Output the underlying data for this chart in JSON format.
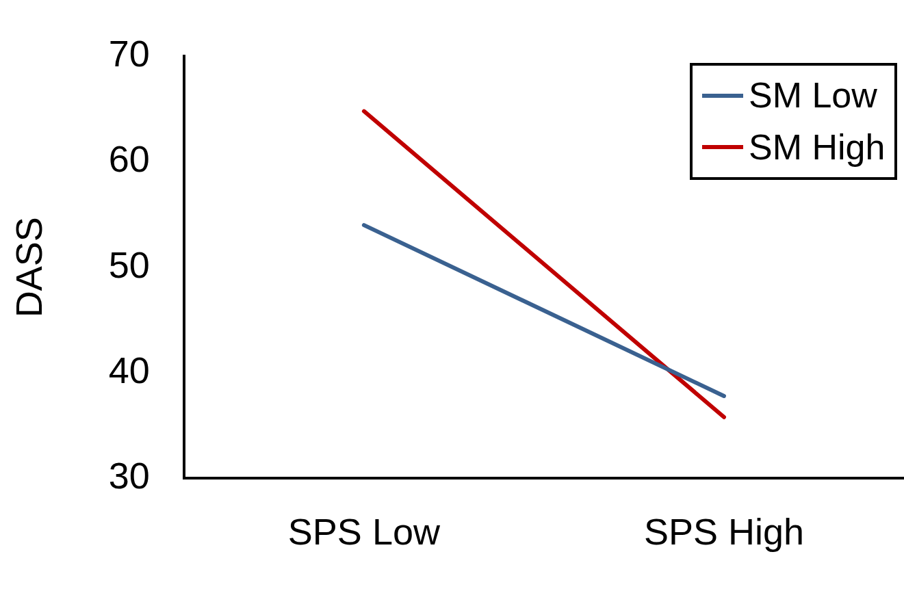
{
  "chart_data": {
    "type": "line",
    "ylabel": "DASS",
    "categories": [
      "SPS Low",
      "SPS High"
    ],
    "series": [
      {
        "name": "SM Low",
        "color": "#3a6190",
        "values": [
          54,
          37.8
        ]
      },
      {
        "name": "SM High",
        "color": "#c00000",
        "values": [
          64.8,
          35.8
        ]
      }
    ],
    "ylim": [
      30,
      70
    ],
    "yticks": [
      30,
      40,
      50,
      60,
      70
    ],
    "grid": false,
    "legend": "top right",
    "marker": "none",
    "line_style": "solid"
  }
}
